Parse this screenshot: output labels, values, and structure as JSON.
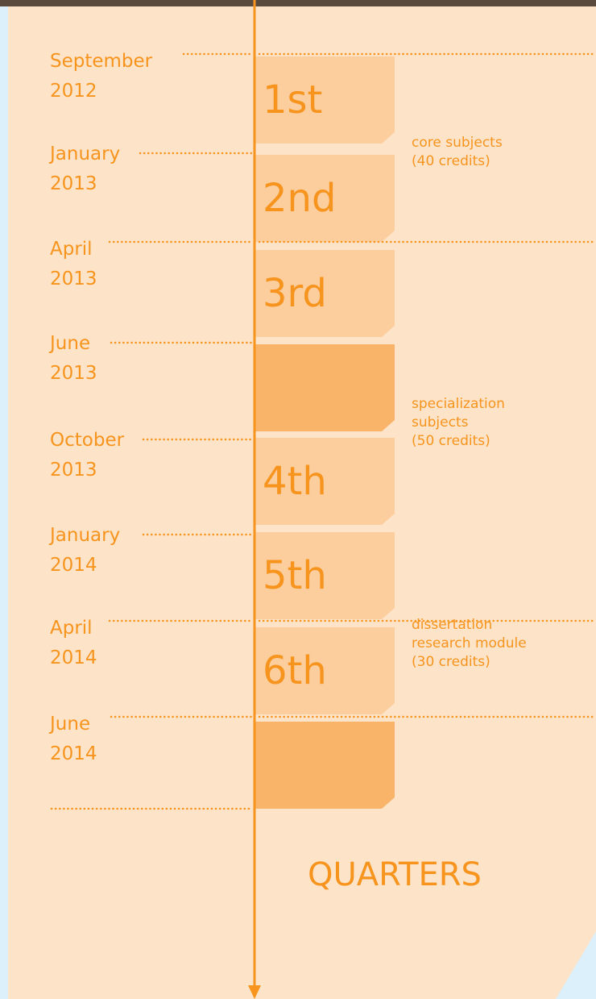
{
  "timeline": {
    "dates": [
      {
        "month": "September",
        "year": "2012"
      },
      {
        "month": "January",
        "year": "2013"
      },
      {
        "month": "April",
        "year": "2013"
      },
      {
        "month": "June",
        "year": "2013"
      },
      {
        "month": "October",
        "year": "2013"
      },
      {
        "month": "January",
        "year": "2014"
      },
      {
        "month": "April",
        "year": "2014"
      },
      {
        "month": "June",
        "year": "2014"
      }
    ],
    "quarters": [
      "1st",
      "2nd",
      "3rd",
      "4th",
      "5th",
      "6th"
    ],
    "groups": [
      {
        "lines": [
          "core subjects",
          "(40 credits)"
        ]
      },
      {
        "lines": [
          "specialization",
          "subjects",
          "(50 credits)"
        ]
      },
      {
        "lines": [
          "dissertation",
          "research module",
          "(30 credits)"
        ]
      }
    ],
    "axis_label": "QUARTERS"
  }
}
